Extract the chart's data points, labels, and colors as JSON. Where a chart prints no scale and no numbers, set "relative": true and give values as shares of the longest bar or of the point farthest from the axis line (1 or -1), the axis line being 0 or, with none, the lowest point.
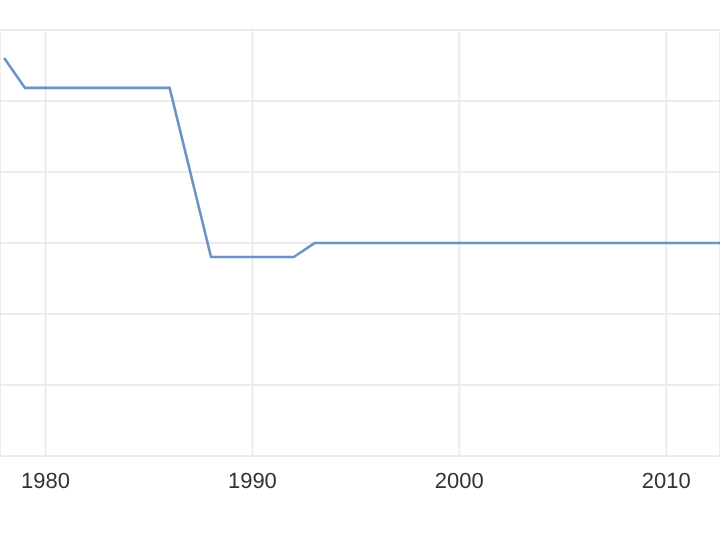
{
  "chart_data": {
    "type": "line",
    "relative": true,
    "x": [
      1978,
      1979,
      1986,
      1988,
      1992,
      1993,
      2012.6
    ],
    "series": [
      {
        "color": "#6d93c6",
        "values": [
          1,
          0.925,
          0.925,
          0.5,
          0.5,
          0.535,
          0.535
        ]
      }
    ],
    "xlim": [
      1977.8,
      2012.6
    ],
    "xticks": [
      1980,
      1990,
      2000,
      2010
    ],
    "grid": true,
    "marker": "none",
    "line_style": "solid"
  }
}
